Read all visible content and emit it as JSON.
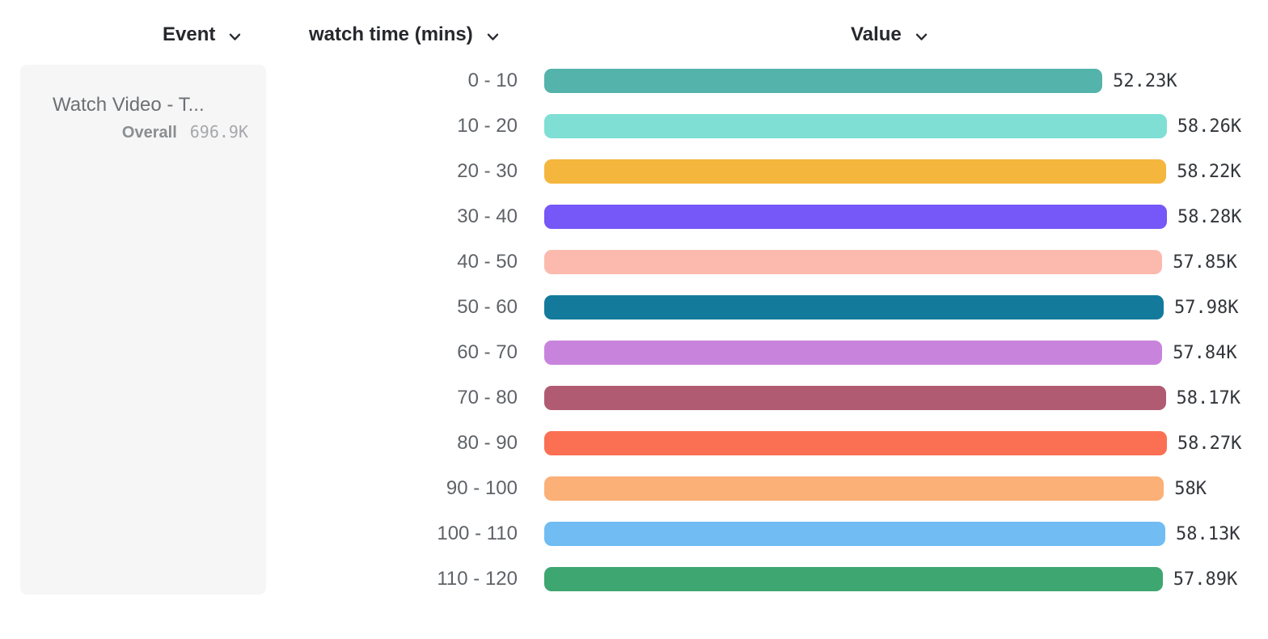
{
  "header": {
    "columns": [
      {
        "id": "event",
        "label": "Event"
      },
      {
        "id": "breakdown",
        "label": "watch time (mins)"
      },
      {
        "id": "value",
        "label": "Value"
      }
    ]
  },
  "legend": {
    "event_name": "Watch Video - T...",
    "overall_label": "Overall",
    "overall_value": "696.9K"
  },
  "icons": {
    "header_chevron": "chevron-down-icon"
  },
  "colors": {
    "header_text": "#26282d",
    "category_text": "#5f6368",
    "value_text": "#33363b",
    "panel_background": "#f6f6f6"
  },
  "chart_data": {
    "type": "bar",
    "orientation": "horizontal",
    "title": "",
    "xlabel": "Value",
    "ylabel": "watch time (mins)",
    "series_name": "Watch Video - T...",
    "overall_total": "696.9K",
    "categories": [
      "0 - 10",
      "10 - 20",
      "20 - 30",
      "30 - 40",
      "40 - 50",
      "50 - 60",
      "60 - 70",
      "70 - 80",
      "80 - 90",
      "90 - 100",
      "100 - 110",
      "110 - 120"
    ],
    "values": [
      52230,
      58260,
      58220,
      58280,
      57850,
      57980,
      57840,
      58170,
      58270,
      58000,
      58130,
      57890
    ],
    "value_labels": [
      "52.23K",
      "58.26K",
      "58.22K",
      "58.28K",
      "57.85K",
      "57.98K",
      "57.84K",
      "58.17K",
      "58.27K",
      "58K",
      "58.13K",
      "57.89K"
    ],
    "bar_colors": [
      "#54B3AB",
      "#7FDFD4",
      "#F5B63E",
      "#7657F7",
      "#FBBAAD",
      "#147A9C",
      "#C884DC",
      "#B05B72",
      "#FB7053",
      "#FBB077",
      "#70BCF3",
      "#3EA671"
    ],
    "xlim": [
      0,
      58280
    ],
    "grid": false,
    "legend_position": "left"
  }
}
